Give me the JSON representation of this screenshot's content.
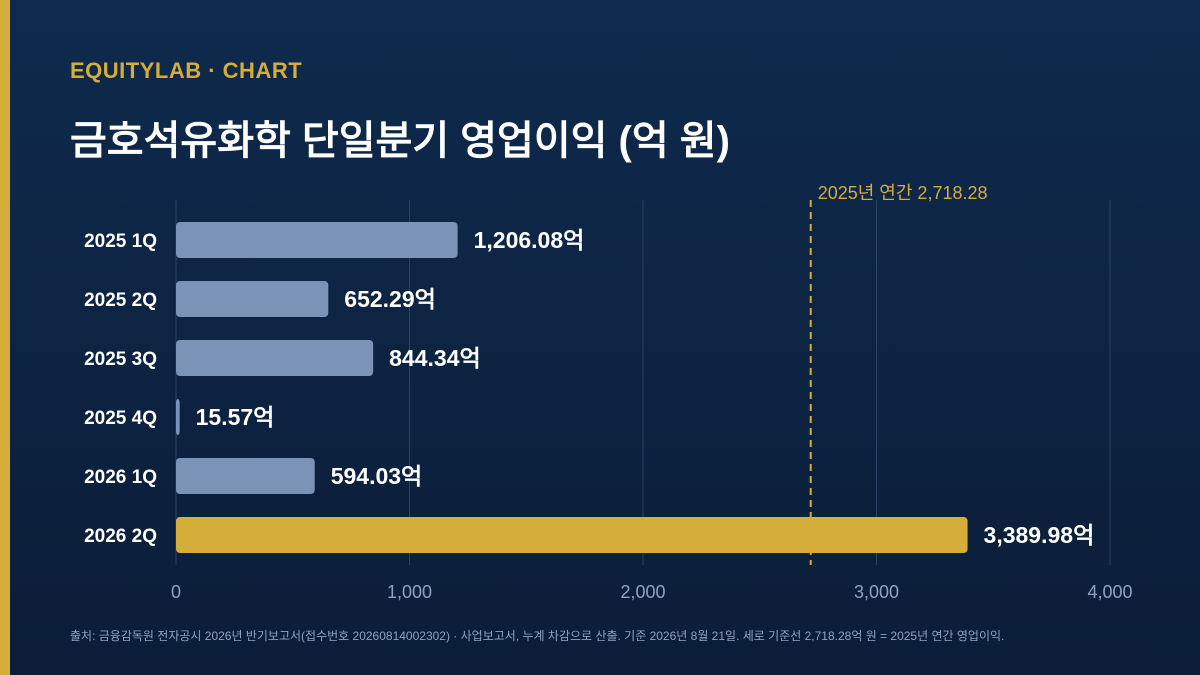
{
  "header": {
    "eyebrow": "EQUITYLAB · CHART",
    "title": "금호석유화학 단일분기 영업이익 (억 원)"
  },
  "footer": {
    "source": "출처: 금융감독원 전자공시 2026년 반기보고서(접수번호 20260814002302) · 사업보고서, 누계 차감으로 산출. 기준 2026년 8월 21일. 세로 기준선 2,718.28억 원 = 2025년 연간 영업이익."
  },
  "colors": {
    "background": "#0f2a4d",
    "accent": "#d4ad3a",
    "bar": "#7b93b7",
    "grid": "#2a4266",
    "tick_text": "#8ea3c1"
  },
  "chart_data": {
    "type": "bar",
    "orientation": "horizontal",
    "categories": [
      "2025 1Q",
      "2025 2Q",
      "2025 3Q",
      "2025 4Q",
      "2026 1Q",
      "2026 2Q"
    ],
    "values": [
      1206.08,
      652.29,
      844.34,
      15.57,
      594.03,
      3389.98
    ],
    "value_labels": [
      "1,206.08억",
      "652.29억",
      "844.34억",
      "15.57억",
      "594.03억",
      "3,389.98억"
    ],
    "highlight": "2026 2Q",
    "xlim": [
      0,
      4000
    ],
    "xticks": [
      0,
      1000,
      2000,
      3000,
      4000
    ],
    "xtick_labels": [
      "0",
      "1,000",
      "2,000",
      "3,000",
      "4,000"
    ],
    "grid": true,
    "reference_line": {
      "value": 2718.28,
      "label": "2025년 연간 2,718.28",
      "style": "dashed"
    }
  }
}
